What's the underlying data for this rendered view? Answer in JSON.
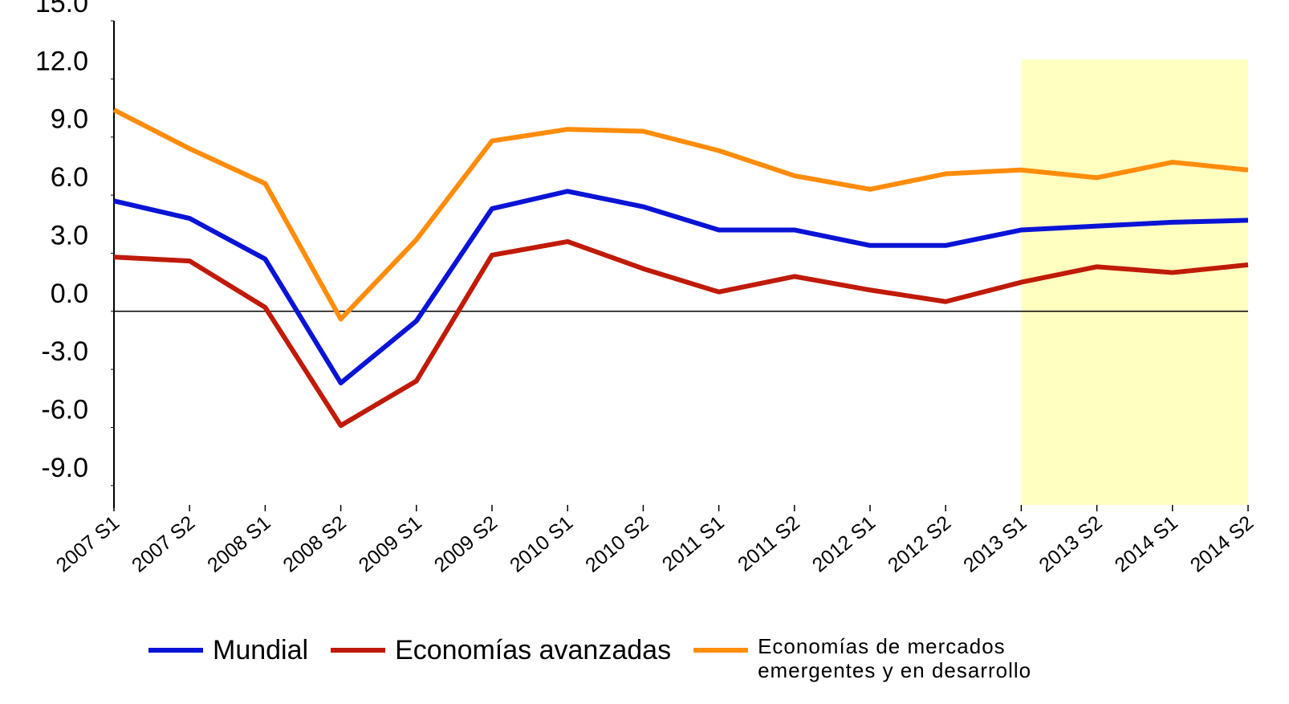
{
  "chart_data": {
    "type": "line",
    "categories": [
      "2007 S1",
      "2007 S2",
      "2008 S1",
      "2008 S2",
      "2009 S1",
      "2009 S2",
      "2010 S1",
      "2010 S2",
      "2011 S1",
      "2011 S2",
      "2012 S1",
      "2012 S2",
      "2013 S1",
      "2013 S2",
      "2014 S1",
      "2014 S2"
    ],
    "series": [
      {
        "name": "Mundial",
        "color": "#0a14d6",
        "values": [
          5.7,
          4.8,
          2.7,
          -3.7,
          -0.5,
          5.3,
          6.2,
          5.4,
          4.2,
          4.2,
          3.4,
          3.4,
          4.2,
          4.4,
          4.6,
          4.7
        ]
      },
      {
        "name": "Economías avanzadas",
        "color": "#c01a08",
        "values": [
          2.8,
          2.6,
          0.2,
          -5.9,
          -3.6,
          2.9,
          3.6,
          2.2,
          1.0,
          1.8,
          1.1,
          0.5,
          1.5,
          2.3,
          2.0,
          2.4
        ]
      },
      {
        "name": "Economías de mercados emergentes y en desarrollo",
        "color": "#ff8c0a",
        "values": [
          10.4,
          8.4,
          6.6,
          -0.4,
          3.7,
          8.8,
          9.4,
          9.3,
          8.3,
          7.0,
          6.3,
          7.1,
          7.3,
          6.9,
          7.7,
          7.3
        ]
      }
    ],
    "ylim": [
      -10,
      15
    ],
    "yticks": [
      {
        "value": -9,
        "label": "-9.0"
      },
      {
        "value": -6,
        "label": "-6.0"
      },
      {
        "value": -3,
        "label": "-3.0"
      },
      {
        "value": 0,
        "label": "0.0"
      },
      {
        "value": 3,
        "label": "3.0"
      },
      {
        "value": 6,
        "label": "6.0"
      },
      {
        "value": 9,
        "label": "9.0"
      },
      {
        "value": 12,
        "label": "12.0"
      },
      {
        "value": 15,
        "label": "15.0"
      }
    ],
    "highlight": {
      "start": "2013 S1",
      "end": "2014 S2",
      "ymax": 13,
      "color": "#ffffc0"
    },
    "legend": "bottom",
    "grid": false
  }
}
